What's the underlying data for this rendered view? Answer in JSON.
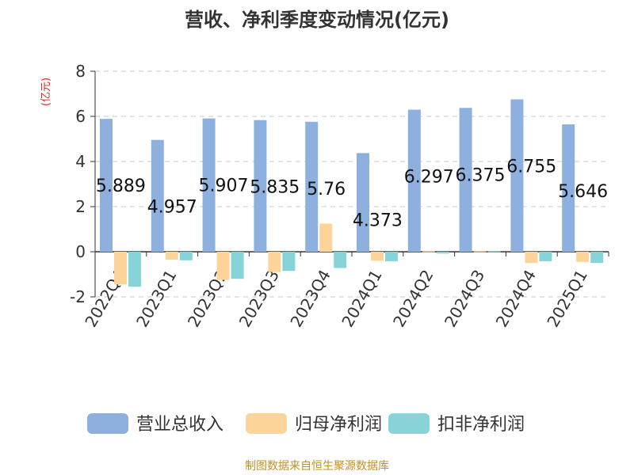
{
  "chart_data": {
    "type": "bar",
    "title": "营收、净利季度变动情况(亿元)",
    "ylabel": "(亿元)",
    "xlabel": "",
    "ylim": [
      -2,
      8
    ],
    "yticks": [
      -2,
      0,
      2,
      4,
      6,
      8
    ],
    "grid": true,
    "legend_position": "bottom",
    "categories": [
      "2022Q4",
      "2023Q1",
      "2023Q2",
      "2023Q3",
      "2023Q4",
      "2024Q1",
      "2024Q2",
      "2024Q3",
      "2024Q4",
      "2025Q1"
    ],
    "series": [
      {
        "name": "营业总收入",
        "color": "#8eb0de",
        "values": [
          5.889,
          4.957,
          5.907,
          5.835,
          5.76,
          4.373,
          6.297,
          6.375,
          6.755,
          5.646
        ],
        "data_labels": [
          "5.889",
          "4.957",
          "5.907",
          "5.835",
          "5.76",
          "4.373",
          "6.297",
          "6.375",
          "6.755",
          "5.646"
        ]
      },
      {
        "name": "归母净利润",
        "color": "#fdd49a",
        "values": [
          -1.45,
          -0.35,
          -1.25,
          -0.9,
          1.25,
          -0.4,
          0.02,
          0.02,
          -0.5,
          -0.45
        ]
      },
      {
        "name": "扣非净利润",
        "color": "#86d4d8",
        "values": [
          -1.55,
          -0.38,
          -1.2,
          -0.85,
          -0.72,
          -0.42,
          -0.08,
          0.02,
          -0.42,
          -0.5
        ]
      }
    ]
  },
  "footer": {
    "source": "制图数据来自恒生聚源数据库"
  }
}
